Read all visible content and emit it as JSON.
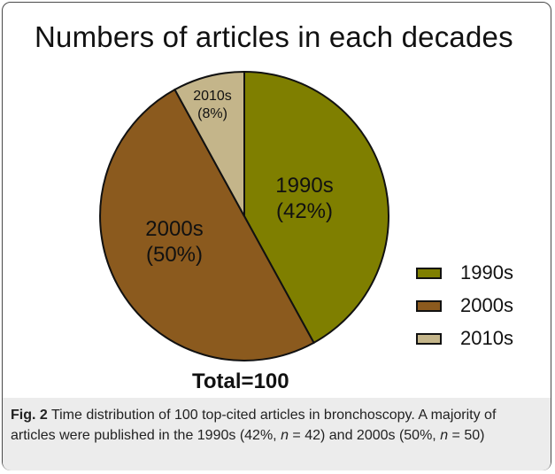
{
  "chart_data": {
    "type": "pie",
    "title": "Numbers of articles in each decades",
    "slices": [
      {
        "name": "1990s",
        "value": 42,
        "label_lines": [
          "1990s",
          "(42%)"
        ],
        "color": "#7f7f00"
      },
      {
        "name": "2000s",
        "value": 50,
        "label_lines": [
          "2000s",
          "(50%)"
        ],
        "color": "#8b5a1e"
      },
      {
        "name": "2010s",
        "value": 8,
        "label_lines": [
          "2010s",
          "(8%)"
        ],
        "color": "#c4b58a"
      }
    ],
    "legend": {
      "placement": "right",
      "entries": [
        "1990s",
        "2000s",
        "2010s"
      ]
    },
    "total_label": "Total=100"
  },
  "caption": {
    "label": "Fig. 2",
    "segments": [
      {
        "text": " Time distribution of 100 top-cited articles in bronchoscopy. A majority of articles were published in the 1990s (42%, ",
        "italic": false
      },
      {
        "text": "n",
        "italic": true
      },
      {
        "text": " = 42) and 2000s (50%, ",
        "italic": false
      },
      {
        "text": "n",
        "italic": true
      },
      {
        "text": " = 50)",
        "italic": false
      }
    ]
  }
}
